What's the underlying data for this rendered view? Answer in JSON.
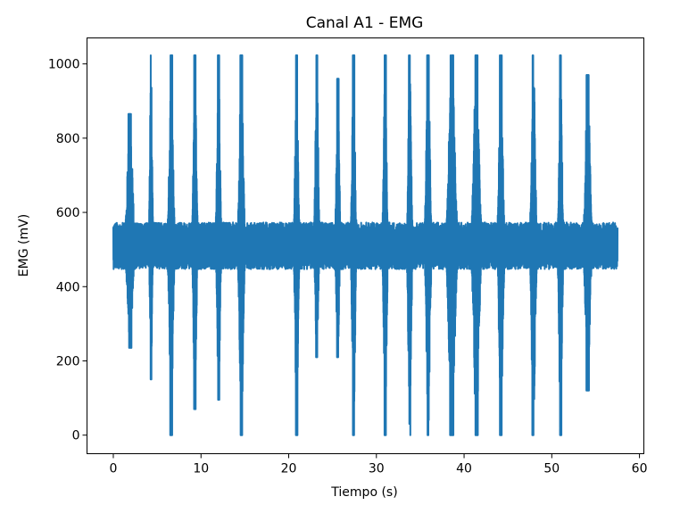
{
  "chart_data": {
    "type": "line",
    "title": "Canal A1 - EMG",
    "xlabel": "Tiempo (s)",
    "ylabel": "EMG (mV)",
    "xlim": [
      -3,
      60.5
    ],
    "ylim": [
      -50,
      1070
    ],
    "x_ticks": [
      0,
      10,
      20,
      30,
      40,
      50,
      60
    ],
    "y_ticks": [
      0,
      200,
      400,
      600,
      800,
      1000
    ],
    "grid": false,
    "legend": "none",
    "series": [
      {
        "color": "#1f77b4",
        "baseline": 510,
        "noise_amplitude": 45,
        "t_start": 0,
        "t_end": 57.5,
        "bursts": [
          {
            "t": 1.9,
            "width": 0.7,
            "max": 865,
            "min": 235
          },
          {
            "t": 4.3,
            "width": 0.3,
            "max": 1023,
            "min": 150
          },
          {
            "t": 6.6,
            "width": 0.5,
            "max": 1023,
            "min": 0
          },
          {
            "t": 9.3,
            "width": 0.4,
            "max": 1023,
            "min": 70
          },
          {
            "t": 12.0,
            "width": 0.4,
            "max": 1023,
            "min": 95
          },
          {
            "t": 14.6,
            "width": 0.5,
            "max": 1023,
            "min": 0
          },
          {
            "t": 20.9,
            "width": 0.4,
            "max": 1023,
            "min": 0
          },
          {
            "t": 23.2,
            "width": 0.4,
            "max": 1023,
            "min": 210
          },
          {
            "t": 25.6,
            "width": 0.4,
            "max": 960,
            "min": 210
          },
          {
            "t": 27.4,
            "width": 0.4,
            "max": 1023,
            "min": 0
          },
          {
            "t": 31.0,
            "width": 0.4,
            "max": 1023,
            "min": 0
          },
          {
            "t": 33.8,
            "width": 0.4,
            "max": 1023,
            "min": 0
          },
          {
            "t": 35.9,
            "width": 0.5,
            "max": 1023,
            "min": 0
          },
          {
            "t": 38.6,
            "width": 0.8,
            "max": 1023,
            "min": 0
          },
          {
            "t": 41.4,
            "width": 0.7,
            "max": 1023,
            "min": 0
          },
          {
            "t": 44.2,
            "width": 0.5,
            "max": 1023,
            "min": 0
          },
          {
            "t": 47.9,
            "width": 0.5,
            "max": 1023,
            "min": 0
          },
          {
            "t": 51.0,
            "width": 0.4,
            "max": 1023,
            "min": 0
          },
          {
            "t": 54.1,
            "width": 0.6,
            "max": 970,
            "min": 120
          }
        ]
      }
    ]
  }
}
